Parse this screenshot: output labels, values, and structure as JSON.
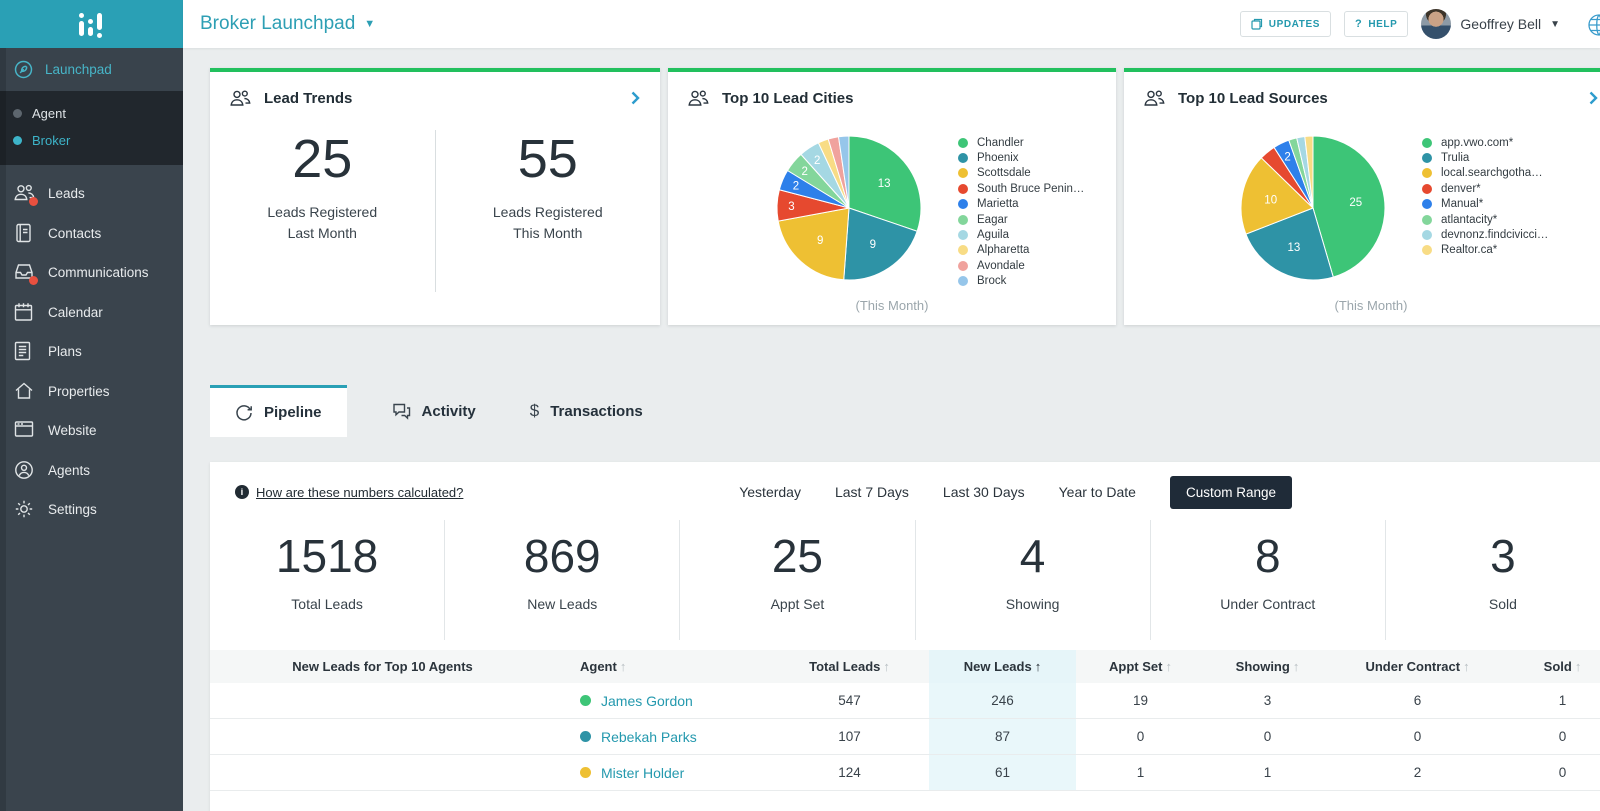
{
  "header": {
    "title": "Broker Launchpad",
    "updates_label": "UPDATES",
    "help_label": "HELP",
    "help_q": "?",
    "user_name": "Geoffrey Bell"
  },
  "sidebar": {
    "launchpad_label": "Launchpad",
    "sub_items": [
      {
        "label": "Agent",
        "active": false
      },
      {
        "label": "Broker",
        "active": true
      }
    ],
    "items": [
      {
        "label": "Leads",
        "icon": "people-icon",
        "badge": true
      },
      {
        "label": "Contacts",
        "icon": "book-icon",
        "badge": false
      },
      {
        "label": "Communications",
        "icon": "inbox-icon",
        "badge": true
      },
      {
        "label": "Calendar",
        "icon": "calendar-icon",
        "badge": false
      },
      {
        "label": "Plans",
        "icon": "document-icon",
        "badge": false
      },
      {
        "label": "Properties",
        "icon": "home-icon",
        "badge": false
      },
      {
        "label": "Website",
        "icon": "browser-icon",
        "badge": false
      },
      {
        "label": "Agents",
        "icon": "person-circle-icon",
        "badge": false
      },
      {
        "label": "Settings",
        "icon": "gear-icon",
        "badge": false
      }
    ]
  },
  "cards": {
    "lead_trends": {
      "title": "Lead Trends",
      "stats": [
        {
          "value": "25",
          "label_line1": "Leads Registered",
          "label_line2": "Last Month"
        },
        {
          "value": "55",
          "label_line1": "Leads Registered",
          "label_line2": "This Month"
        }
      ]
    },
    "lead_cities": {
      "title": "Top 10 Lead Cities",
      "caption": "(This Month)"
    },
    "lead_sources": {
      "title": "Top 10 Lead Sources",
      "caption": "(This Month)"
    }
  },
  "chart_data": [
    {
      "type": "pie",
      "title": "Top 10 Lead Cities",
      "caption": "(This Month)",
      "legend_position": "right",
      "slices": [
        {
          "label": "Chandler",
          "value": 13,
          "color": "#3dc577",
          "show_value": true
        },
        {
          "label": "Phoenix",
          "value": 9,
          "color": "#2e93a6",
          "show_value": true
        },
        {
          "label": "Scottsdale",
          "value": 9,
          "color": "#eec033",
          "show_value": true
        },
        {
          "label": "South Bruce Penin…",
          "value": 3,
          "color": "#e6492f",
          "show_value": true
        },
        {
          "label": "Marietta",
          "value": 2,
          "color": "#2e80ea",
          "show_value": true
        },
        {
          "label": "Eagar",
          "value": 2,
          "color": "#83d69b",
          "show_value": true
        },
        {
          "label": "Aguila",
          "value": 2,
          "color": "#a5d8e3",
          "show_value": true
        },
        {
          "label": "Alpharetta",
          "value": 1,
          "color": "#f8dc85",
          "show_value": false
        },
        {
          "label": "Avondale",
          "value": 1,
          "color": "#f0a29d",
          "show_value": false
        },
        {
          "label": "Brock",
          "value": 1,
          "color": "#96c6ea",
          "show_value": false
        }
      ]
    },
    {
      "type": "pie",
      "title": "Top 10 Lead Sources",
      "caption": "(This Month)",
      "legend_position": "right",
      "slices": [
        {
          "label": "app.vwo.com*",
          "value": 25,
          "color": "#3dc577",
          "show_value": true
        },
        {
          "label": "Trulia",
          "value": 13,
          "color": "#2e93a6",
          "show_value": true
        },
        {
          "label": "local.searchgotha…",
          "value": 10,
          "color": "#eec033",
          "show_value": true
        },
        {
          "label": "denver*",
          "value": 2,
          "color": "#e6492f",
          "show_value": false
        },
        {
          "label": "Manual*",
          "value": 2,
          "color": "#2e80ea",
          "show_value": true
        },
        {
          "label": "atlantacity*",
          "value": 1,
          "color": "#83d69b",
          "show_value": false
        },
        {
          "label": "devnonz.findcivicci…",
          "value": 1,
          "color": "#a5d8e3",
          "show_value": false
        },
        {
          "label": "Realtor.ca*",
          "value": 1,
          "color": "#f8dc85",
          "show_value": false
        }
      ]
    }
  ],
  "tabs": [
    {
      "label": "Pipeline",
      "active": true
    },
    {
      "label": "Activity",
      "active": false
    },
    {
      "label": "Transactions",
      "active": false
    }
  ],
  "pipeline": {
    "info_link": "How are these numbers calculated?",
    "ranges": [
      {
        "label": "Yesterday",
        "active": false
      },
      {
        "label": "Last 7 Days",
        "active": false
      },
      {
        "label": "Last 30 Days",
        "active": false
      },
      {
        "label": "Year to Date",
        "active": false
      },
      {
        "label": "Custom Range",
        "active": true
      }
    ],
    "stats": [
      {
        "value": "1518",
        "label": "Total Leads"
      },
      {
        "value": "869",
        "label": "New Leads"
      },
      {
        "value": "25",
        "label": "Appt Set"
      },
      {
        "value": "4",
        "label": "Showing"
      },
      {
        "value": "8",
        "label": "Under Contract"
      },
      {
        "value": "3",
        "label": "Sold"
      }
    ],
    "table": {
      "caption": "New Leads for Top 10 Agents",
      "columns": [
        {
          "label": "Agent",
          "sorted": false
        },
        {
          "label": "Total Leads",
          "sorted": false
        },
        {
          "label": "New Leads",
          "sorted": true
        },
        {
          "label": "Appt Set",
          "sorted": false
        },
        {
          "label": "Showing",
          "sorted": false
        },
        {
          "label": "Under Contract",
          "sorted": false
        },
        {
          "label": "Sold",
          "sorted": false
        }
      ],
      "rows": [
        {
          "agent": "James Gordon",
          "dot_color": "#3dc577",
          "values": [
            547,
            246,
            19,
            3,
            6,
            1
          ]
        },
        {
          "agent": "Rebekah Parks",
          "dot_color": "#2e93a6",
          "values": [
            107,
            87,
            0,
            0,
            0,
            0
          ]
        },
        {
          "agent": "Mister Holder",
          "dot_color": "#eec033",
          "values": [
            124,
            61,
            1,
            1,
            2,
            0
          ]
        }
      ]
    }
  }
}
